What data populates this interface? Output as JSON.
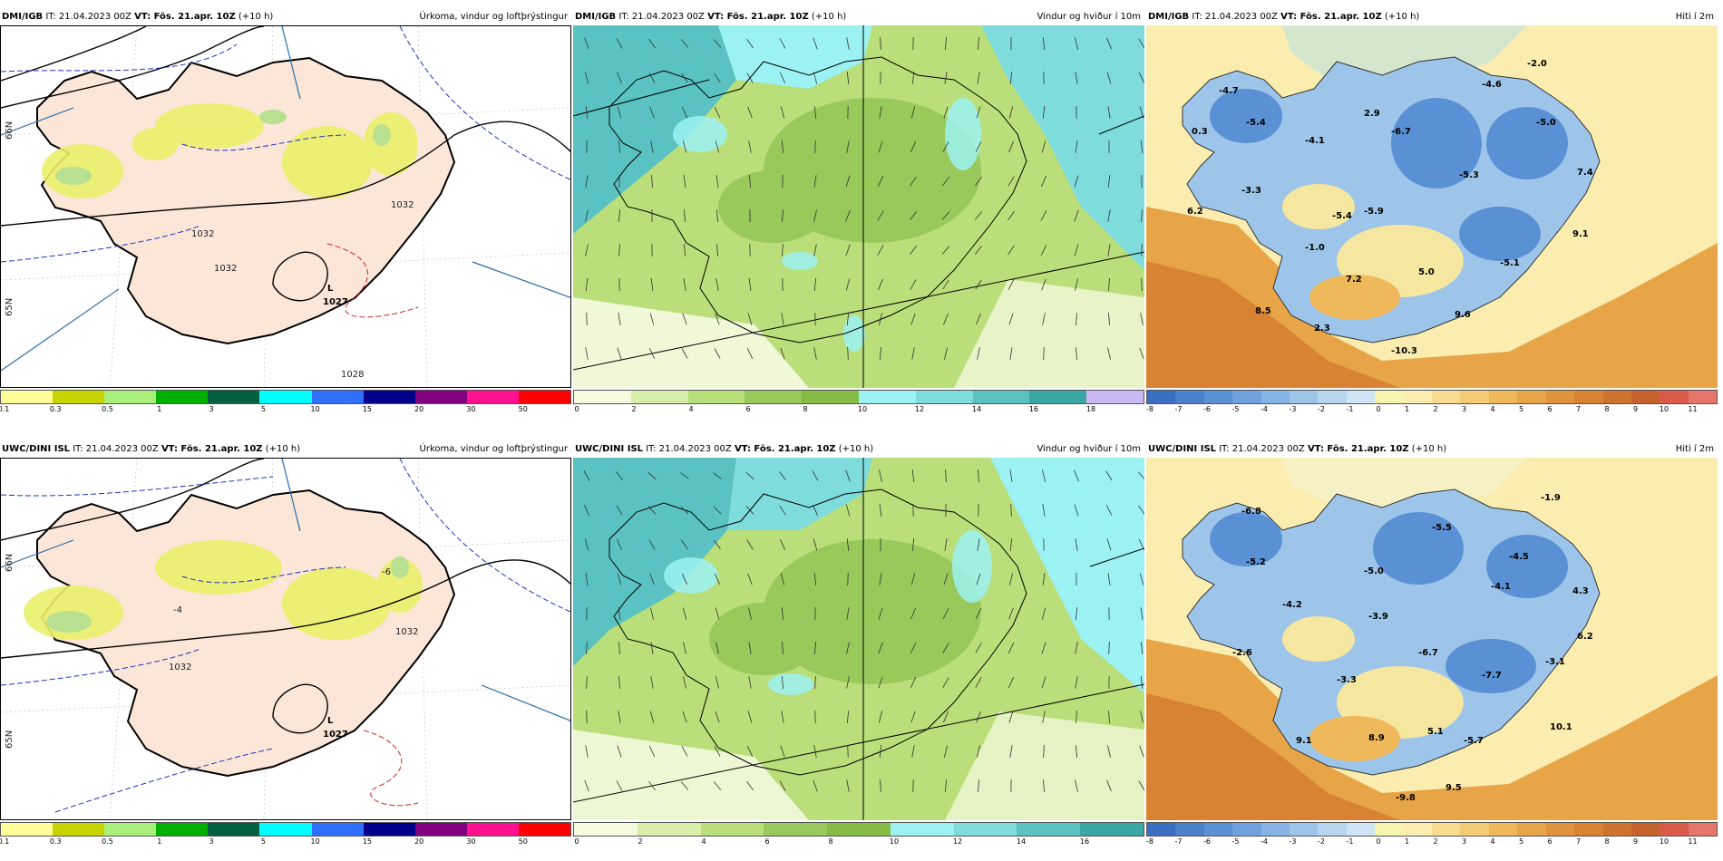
{
  "rows": [
    {
      "source": "DMI/IGB",
      "precip": {
        "title": "Úrkoma, vindur og loftþrýstingur",
        "iso_labels": [
          "1032",
          "1032",
          "1032",
          "1027",
          "1028"
        ],
        "low": "L"
      },
      "wind": {
        "title": "Vindur og hviður í 10m"
      },
      "temp": {
        "title": "Hiti í 2m",
        "values": [
          "-4.7",
          "0.3",
          "-5.4",
          "-4.1",
          "2.9",
          "-6.7",
          "-4.6",
          "-2.0",
          "-5.0",
          "6.2",
          "-3.3",
          "-5.4",
          "-5.9",
          "-5.3",
          "7.4",
          "-1.0",
          "7.2",
          "5.0",
          "-5.1",
          "9.1",
          "8.5",
          "2.3",
          "-10.3",
          "9.6"
        ]
      }
    },
    {
      "source": "UWC/DINI ISL",
      "precip": {
        "title": "Úrkoma, vindur og loftþrýstingur",
        "iso_labels": [
          "1032",
          "1032",
          "1027",
          "-6",
          "-4"
        ],
        "low": "L"
      },
      "wind": {
        "title": "Vindur og hviður í 10m"
      },
      "temp": {
        "title": "Hiti í 2m",
        "values": [
          "-6.8",
          "-5.2",
          "-5.0",
          "-5.5",
          "-4.5",
          "-1.9",
          "-4.2",
          "-4.1",
          "4.3",
          "-2.6",
          "-3.9",
          "6.2",
          "-6.7",
          "-7.7",
          "-3.1",
          "-3.3",
          "10.1",
          "9.1",
          "8.9",
          "5.1",
          "-5.7",
          "-9.8",
          "9.5"
        ]
      }
    }
  ],
  "run_info": {
    "it_label": "IT: 21.04.2023 00Z",
    "vt_label": "VT: Fös. 21.apr. 10Z",
    "lead": "(+10 h)"
  },
  "lat_labels": [
    "66N",
    "65N"
  ],
  "precip_scale": {
    "ticks": [
      "0.1",
      "0.3",
      "0.5",
      "1",
      "3",
      "5",
      "10",
      "15",
      "20",
      "30",
      "50"
    ],
    "colors": [
      "#ffff99",
      "#c8d400",
      "#a8f07a",
      "#00b000",
      "#006040",
      "#00ffff",
      "#3070ff",
      "#00008b",
      "#800080",
      "#ff1090",
      "#ff0000"
    ]
  },
  "wind_scale": {
    "top": {
      "ticks": [
        "0",
        "2",
        "4",
        "6",
        "8",
        "10",
        "12",
        "14",
        "16",
        "18"
      ]
    },
    "bottom": {
      "ticks": [
        "0",
        "2",
        "4",
        "6",
        "8",
        "10",
        "12",
        "14",
        "16"
      ]
    },
    "colors": [
      "#f6fbe0",
      "#d7efa8",
      "#b9de7a",
      "#98c95a",
      "#84bc45",
      "#9cf2f2",
      "#7fdcdc",
      "#5ac2c2",
      "#3aa6a6",
      "#cbb8f3"
    ]
  },
  "temp_scale": {
    "ticks": [
      "-8",
      "-7",
      "-6",
      "-5",
      "-4",
      "-3",
      "-2",
      "-1",
      "0",
      "1",
      "2",
      "3",
      "4",
      "5",
      "6",
      "7",
      "8",
      "9",
      "10",
      "11"
    ],
    "colors": [
      "#3a6fc4",
      "#4a80cc",
      "#5a90d4",
      "#6fa2dc",
      "#86b4e4",
      "#9dc5ea",
      "#b6d6f0",
      "#cfe4f4",
      "#f5f5b0",
      "#fbedb0",
      "#f8dd90",
      "#f4cc74",
      "#efb85a",
      "#e8a548",
      "#e0933c",
      "#d88234",
      "#cf722e",
      "#c6622c",
      "#d95b48",
      "#e8756a"
    ]
  }
}
